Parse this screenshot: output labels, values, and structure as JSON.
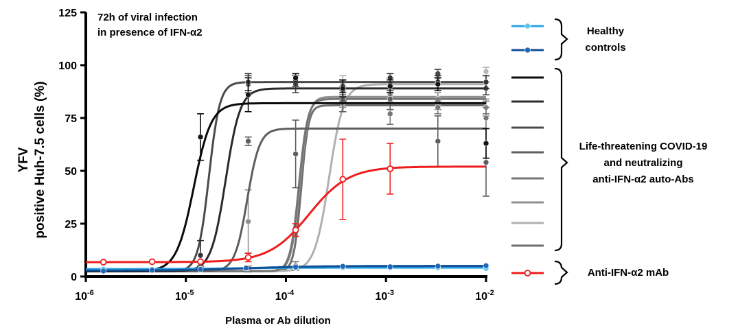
{
  "chart_data": {
    "type": "line",
    "annotation": [
      "72h of viral infection",
      "in presence of IFN-α2"
    ],
    "ylabel_lines": [
      "YFV",
      "positive Huh-7.5 cells (%)"
    ],
    "xlabel": "Plasma or Ab dilution",
    "x_scale": "log",
    "xlim": [
      1e-06,
      0.01
    ],
    "ylim": [
      0,
      125
    ],
    "y_ticks": [
      0,
      25,
      50,
      75,
      100,
      125
    ],
    "x_ticks": [
      {
        "value": 1e-06,
        "exp": "-6"
      },
      {
        "value": 1e-05,
        "exp": "-5"
      },
      {
        "value": 0.0001,
        "exp": "-4"
      },
      {
        "value": 0.001,
        "exp": "-3"
      },
      {
        "value": 0.01,
        "exp": "-2"
      }
    ],
    "grid": false,
    "legend_groups": [
      {
        "label_lines": [
          "Healthy",
          "controls"
        ],
        "series": [
          0,
          1
        ]
      },
      {
        "label_lines": [
          "Life-threatening COVID-19",
          "and neutralizing",
          "anti-IFN-α2 auto-Abs"
        ],
        "series": [
          2,
          3,
          4,
          5,
          6,
          7,
          8,
          9
        ]
      },
      {
        "label_lines": [
          "Anti-IFN-α2 mAb"
        ],
        "series": [
          10
        ]
      }
    ],
    "series": [
      {
        "color": "#29a3e3",
        "marker": "#5ec4f2",
        "bottom": 3.5,
        "top": 4.2,
        "ec50": 3e-05,
        "hill": 1.5,
        "points": [
          [
            1.5e-06,
            3.5
          ],
          [
            4.6e-06,
            3.4
          ],
          [
            1.4e-05,
            3.7
          ],
          [
            4e-05,
            3.9
          ],
          [
            0.000125,
            4.1
          ],
          [
            0.00037,
            4.2
          ],
          [
            0.0011,
            4.1
          ],
          [
            0.0033,
            4.2
          ],
          [
            0.01,
            3.8
          ]
        ]
      },
      {
        "color": "#0f4f96",
        "marker": "#1f67b8",
        "bottom": 2.8,
        "top": 5.0,
        "ec50": 4e-05,
        "hill": 1.2,
        "points": [
          [
            1.5e-06,
            2.6
          ],
          [
            4.6e-06,
            3.0
          ],
          [
            1.4e-05,
            3.4
          ],
          [
            4e-05,
            4.0
          ],
          [
            0.000125,
            4.5
          ],
          [
            0.00037,
            4.8
          ],
          [
            0.0011,
            4.6
          ],
          [
            0.0033,
            4.9
          ],
          [
            0.01,
            5.1
          ]
        ]
      },
      {
        "color": "#0a0a0a",
        "marker": "#151515",
        "bottom": 2.5,
        "top": 82,
        "ec50": 1.2e-05,
        "hill": 5,
        "points": [
          [
            4.6e-06,
            3,
            0
          ],
          [
            1.4e-05,
            66,
            11
          ],
          [
            4.2e-05,
            86,
            8
          ],
          [
            0.000125,
            94,
            2
          ],
          [
            0.00037,
            89,
            4
          ],
          [
            0.0011,
            90,
            3
          ],
          [
            0.0033,
            91,
            3
          ],
          [
            0.01,
            63,
            7
          ]
        ]
      },
      {
        "color": "#2b2b2b",
        "marker": "#333333",
        "bottom": 2.5,
        "top": 89,
        "ec50": 2.5e-05,
        "hill": 6,
        "points": [
          [
            4.6e-06,
            3,
            0
          ],
          [
            1.4e-05,
            10,
            7
          ],
          [
            4.2e-05,
            92,
            4
          ],
          [
            0.000125,
            93,
            3
          ],
          [
            0.00037,
            90,
            3
          ],
          [
            0.0011,
            94,
            2
          ],
          [
            0.0033,
            92,
            3
          ],
          [
            0.01,
            92,
            3
          ]
        ]
      },
      {
        "color": "#4a4a4a",
        "marker": "#4a4a4a",
        "bottom": 2.5,
        "top": 92,
        "ec50": 1.7e-05,
        "hill": 8,
        "points": [
          [
            4.6e-06,
            3,
            0
          ],
          [
            1.4e-05,
            5,
            2
          ],
          [
            4.2e-05,
            91,
            4
          ],
          [
            0.000125,
            91,
            4
          ],
          [
            0.00037,
            88,
            5
          ],
          [
            0.0011,
            91,
            3
          ],
          [
            0.0033,
            96,
            2
          ],
          [
            0.01,
            89,
            3
          ]
        ]
      },
      {
        "color": "#5e5e5e",
        "marker": "#5e5e5e",
        "bottom": 2.5,
        "top": 70,
        "ec50": 4.1e-05,
        "hill": 7,
        "points": [
          [
            4.6e-06,
            3,
            0
          ],
          [
            1.4e-05,
            4,
            1
          ],
          [
            4.2e-05,
            64,
            2
          ],
          [
            0.000125,
            58,
            16
          ],
          [
            0.00037,
            84,
            6
          ],
          [
            0.0011,
            84,
            5
          ],
          [
            0.0033,
            64,
            12
          ],
          [
            0.01,
            54,
            16
          ]
        ]
      },
      {
        "color": "#757575",
        "marker": "#757575",
        "bottom": 2.5,
        "top": 84,
        "ec50": 0.000135,
        "hill": 10,
        "points": [
          [
            4.6e-06,
            3,
            0
          ],
          [
            1.4e-05,
            3.5,
            1
          ],
          [
            4.2e-05,
            4,
            1
          ],
          [
            0.000125,
            5,
            2
          ],
          [
            0.00037,
            90,
            3
          ],
          [
            0.0011,
            77,
            5
          ],
          [
            0.0033,
            80,
            3
          ],
          [
            0.01,
            75,
            5
          ]
        ]
      },
      {
        "color": "#8f8f8f",
        "marker": "#8f8f8f",
        "bottom": 2.5,
        "top": 85,
        "ec50": 0.000138,
        "hill": 10,
        "points": [
          [
            4.6e-06,
            3,
            0
          ],
          [
            1.4e-05,
            3.5,
            1
          ],
          [
            4.2e-05,
            26,
            15
          ],
          [
            0.000125,
            4,
            1
          ],
          [
            0.00037,
            84,
            4
          ],
          [
            0.0011,
            86,
            4
          ],
          [
            0.0033,
            84,
            3
          ],
          [
            0.01,
            80,
            4
          ]
        ]
      },
      {
        "color": "#b0b0b0",
        "marker": "#b8b8b8",
        "bottom": 2.5,
        "top": 91,
        "ec50": 0.00027,
        "hill": 6,
        "points": [
          [
            4.6e-06,
            3,
            0
          ],
          [
            1.4e-05,
            3.5,
            1
          ],
          [
            4.2e-05,
            3,
            1
          ],
          [
            0.000125,
            4,
            1
          ],
          [
            0.00037,
            92,
            3
          ],
          [
            0.0011,
            91,
            3
          ],
          [
            0.0033,
            94,
            2
          ],
          [
            0.01,
            97,
            2
          ]
        ]
      },
      {
        "color": "#6e6e6e",
        "marker": "#6e6e6e",
        "bottom": 2.5,
        "top": 81,
        "ec50": 0.000142,
        "hill": 12,
        "points": [
          [
            4.6e-06,
            3,
            0
          ],
          [
            1.4e-05,
            3.5,
            1
          ],
          [
            4.2e-05,
            4,
            1
          ],
          [
            0.000125,
            4,
            1
          ],
          [
            0.00037,
            82,
            4
          ],
          [
            0.0011,
            83,
            4
          ],
          [
            0.0033,
            82,
            3
          ],
          [
            0.01,
            80,
            3
          ]
        ]
      },
      {
        "color": "#ee1c1c",
        "marker": "#ee1c1c",
        "bottom": 6.8,
        "top": 52,
        "ec50": 0.00017,
        "hill": 2.2,
        "points": [
          [
            1.5e-06,
            6.8,
            0
          ],
          [
            4.6e-06,
            7,
            0
          ],
          [
            1.4e-05,
            7,
            0
          ],
          [
            4.2e-05,
            9,
            2
          ],
          [
            0.000125,
            22,
            3
          ],
          [
            0.00037,
            46,
            19
          ],
          [
            0.0011,
            51,
            12
          ]
        ]
      }
    ]
  }
}
